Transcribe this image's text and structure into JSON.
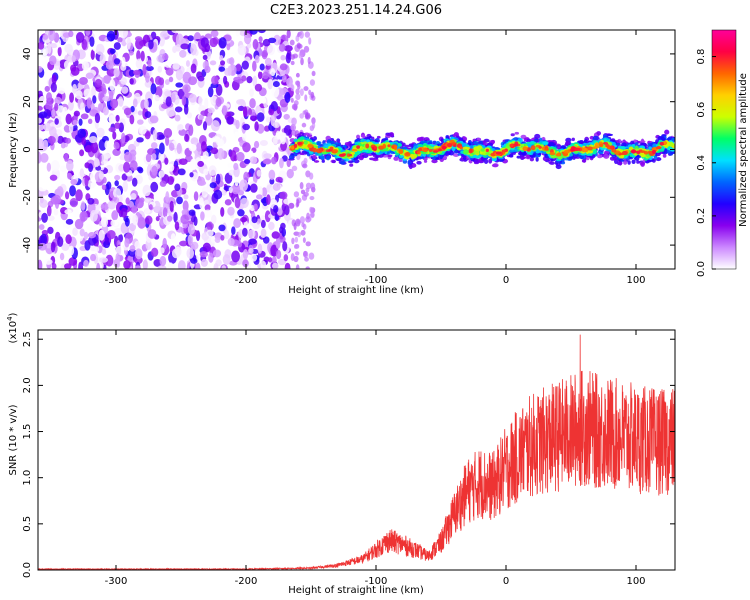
{
  "title": "C2E3.2023.251.14.24.G06",
  "chart_data": [
    {
      "type": "heatmap",
      "xlabel": "Height of straight line (km)",
      "ylabel": "Frequency (Hz)",
      "xlim": [
        -360,
        130
      ],
      "ylim": [
        -50,
        50
      ],
      "x_ticks": [
        -300,
        -200,
        -100,
        0,
        100
      ],
      "y_ticks": [
        -40,
        -20,
        0,
        20,
        40
      ],
      "colorbar": {
        "label": "Normalized spectral amplitude",
        "range": [
          0.0,
          0.9
        ],
        "ticks": [
          0.0,
          0.2,
          0.4,
          0.6,
          0.8
        ],
        "colormap": [
          "#ffffff",
          "#cc88ff",
          "#8800ee",
          "#2200ff",
          "#0066ff",
          "#00e0ff",
          "#00ff66",
          "#ccff00",
          "#ffd000",
          "#ff6600",
          "#ff0044",
          "#ff0099"
        ]
      },
      "regions": [
        {
          "x_range": [
            -360,
            -165
          ],
          "freq_range": [
            -50,
            50
          ],
          "amplitude_range": [
            0.0,
            0.25
          ],
          "description": "broadband noise"
        },
        {
          "x_range": [
            -165,
            -148
          ],
          "freq_range": [
            -50,
            50
          ],
          "amplitude_range": [
            0.0,
            0.05
          ]
        },
        {
          "x_range": [
            -165,
            130
          ],
          "freq_center": 0,
          "freq_halfwidth": 5,
          "amplitude_range": [
            0.2,
            0.9
          ]
        }
      ],
      "grid": false
    },
    {
      "type": "line",
      "color": "#ee3333",
      "xlabel": "Height of straight line (km)",
      "ylabel": "SNR (10 * v/v)",
      "y_scale_label": "(x10",
      "y_scale_exponent": "4",
      "y_scale_suffix": ")",
      "xlim": [
        -360,
        130
      ],
      "ylim": [
        0.0,
        2.6
      ],
      "x_ticks": [
        -300,
        -200,
        -100,
        0,
        100
      ],
      "y_ticks": [
        0.0,
        0.5,
        1.0,
        1.5,
        2.0,
        2.5
      ],
      "y_tick_labels": [
        "0.0",
        "0.5",
        "1.0",
        "1.5",
        "2.0",
        "2.5"
      ],
      "envelope": {
        "x": [
          -360,
          -300,
          -200,
          -150,
          -130,
          -110,
          -100,
          -90,
          -80,
          -70,
          -60,
          -50,
          -40,
          -30,
          -20,
          -10,
          0,
          10,
          20,
          30,
          40,
          50,
          60,
          70,
          80,
          90,
          100,
          110,
          120,
          130
        ],
        "y": [
          0.01,
          0.01,
          0.01,
          0.02,
          0.05,
          0.12,
          0.22,
          0.32,
          0.28,
          0.22,
          0.15,
          0.3,
          0.6,
          0.85,
          0.95,
          0.9,
          1.1,
          1.25,
          1.35,
          1.4,
          1.45,
          1.5,
          1.55,
          1.5,
          1.48,
          1.45,
          1.42,
          1.4,
          1.38,
          1.4
        ]
      },
      "peak": {
        "x": 57,
        "y": 2.55
      },
      "grid": false
    }
  ]
}
